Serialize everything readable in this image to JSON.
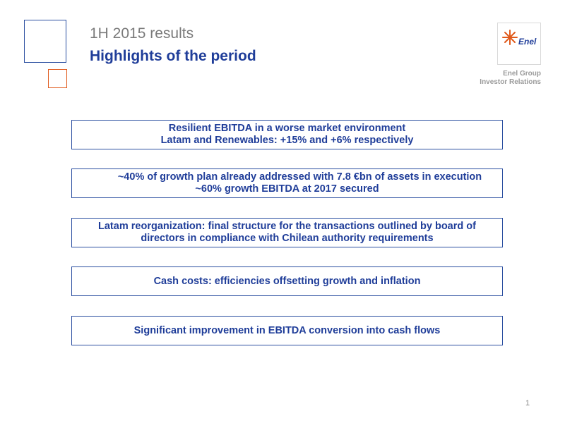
{
  "header": {
    "subtitle": "1H 2015 results",
    "title": "Highlights of the period"
  },
  "logo": {
    "name": "Enel",
    "brand_color": "#1f3d99",
    "flame_color": "#e05a1c"
  },
  "company": {
    "line1": "Enel Group",
    "line2": "Investor Relations"
  },
  "highlights": [
    {
      "line1": "Resilient EBITDA in a worse market environment",
      "line2": "Latam and Renewables: +15% and +6% respectively"
    },
    {
      "line1": "~40% of growth plan already addressed with 7.8 €bn of assets in execution",
      "line2": "~60% growth EBITDA at 2017 secured"
    },
    {
      "line1": "Latam reorganization: final structure for the transactions outlined by board of",
      "line2": "directors in compliance with Chilean authority requirements"
    },
    {
      "line1": "Cash costs: efficiencies offsetting growth and inflation"
    },
    {
      "line1": "Significant improvement in EBITDA conversion into cash flows"
    }
  ],
  "page_number": "1",
  "colors": {
    "accent_blue": "#1f3d99",
    "accent_orange": "#e05a1c",
    "muted_gray": "#7a7a7a"
  }
}
